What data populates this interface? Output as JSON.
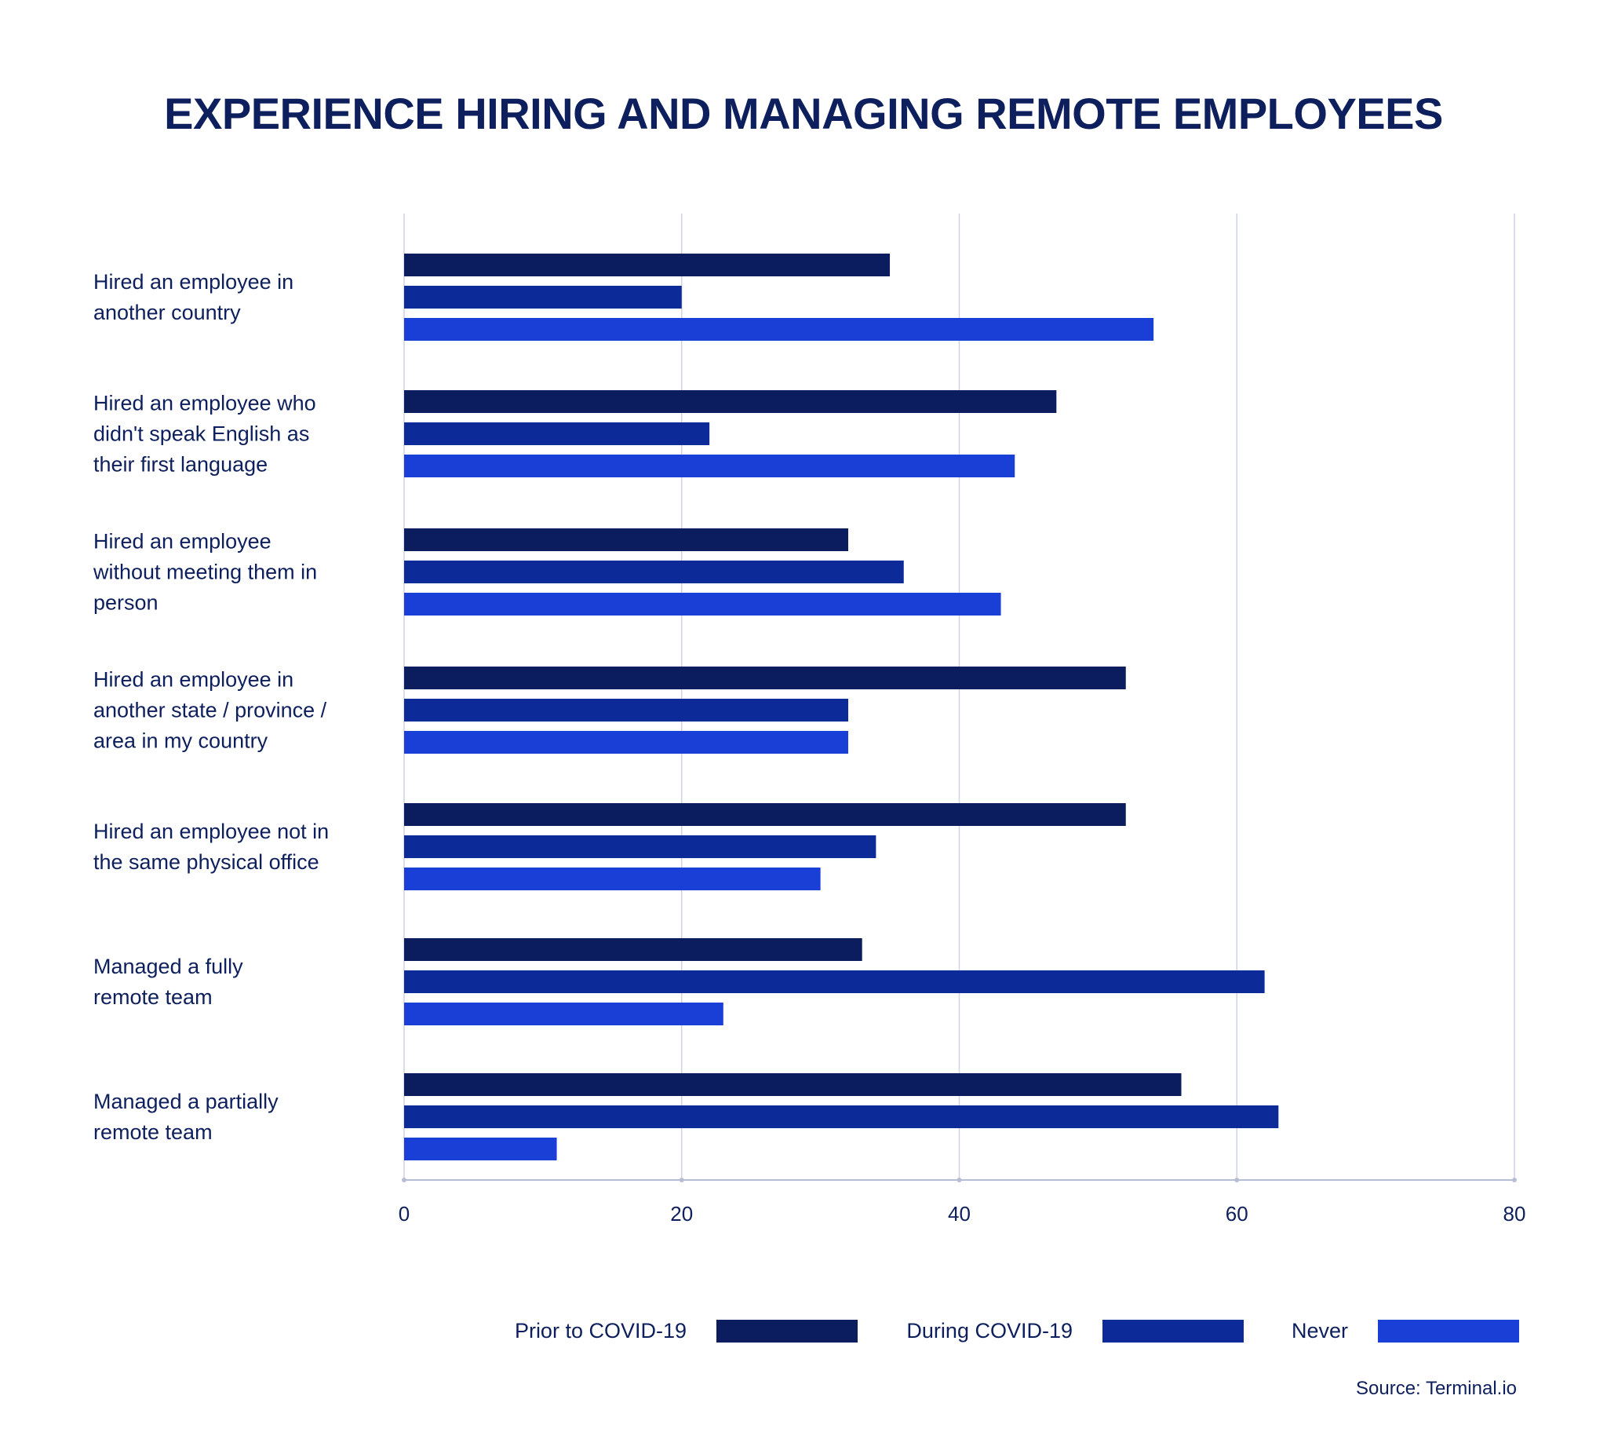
{
  "chart_data": {
    "type": "bar",
    "orientation": "horizontal",
    "title": "EXPERIENCE HIRING AND MANAGING REMOTE EMPLOYEES",
    "source": "Source: Terminal.io",
    "xlim": [
      0,
      80
    ],
    "xticks": [
      "0",
      "20",
      "40",
      "60",
      "80"
    ],
    "grid": true,
    "legend_position": "bottom-right",
    "categories": [
      [
        "Hired an employee in",
        "another country"
      ],
      [
        "Hired an employee who",
        "didn't speak English as",
        "their first language"
      ],
      [
        "Hired an employee",
        "without meeting them in",
        "person"
      ],
      [
        "Hired an employee in",
        "another state / province /",
        "area in my country"
      ],
      [
        "Hired an employee not in",
        "the same physical office"
      ],
      [
        "Managed a fully",
        "remote team"
      ],
      [
        "Managed a partially",
        "remote team"
      ]
    ],
    "series": [
      {
        "name": "Prior to COVID-19",
        "color": "#0b1d5f",
        "values": [
          35,
          47,
          32,
          52,
          52,
          33,
          56
        ]
      },
      {
        "name": "During COVID-19",
        "color": "#0d2a99",
        "values": [
          20,
          22,
          36,
          32,
          34,
          62,
          63
        ]
      },
      {
        "name": "Never",
        "color": "#1a3fd6",
        "values": [
          54,
          44,
          43,
          32,
          30,
          23,
          11
        ]
      }
    ]
  }
}
